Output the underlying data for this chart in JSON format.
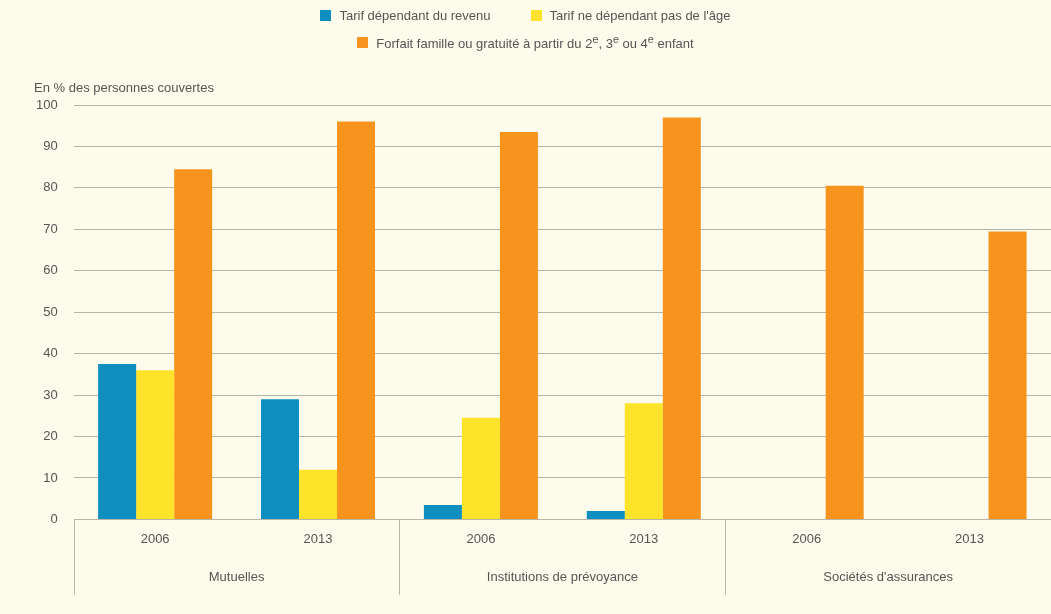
{
  "chart_data": {
    "type": "bar",
    "ylabel": "En % des personnes couvertes",
    "categories": [
      "2006",
      "2013",
      "2006",
      "2013",
      "2006",
      "2013"
    ],
    "annotations": [
      "Mutuelles",
      "Institutions de prévoyance",
      "Sociétés d'assurances"
    ],
    "series": [
      {
        "name": "Tarif dépendant du revenu",
        "color": "#0f8fbf",
        "values": [
          37.5,
          29,
          3.5,
          2,
          null,
          null
        ]
      },
      {
        "name": "Tarif ne dépendant pas de l'âge",
        "color": "#fde42a",
        "values": [
          36,
          12,
          24.5,
          28,
          null,
          null
        ]
      },
      {
        "name": "Forfait famille ou gratuité à partir du 2$^{e}$, 3$^{e}$ ou 4$^{e}$ enfant",
        "color": "#f7941d",
        "values": [
          84.5,
          96,
          93.5,
          97,
          80.5,
          69.5
        ]
      }
    ],
    "ylim": [
      0,
      100
    ],
    "yticks": [
      0,
      10,
      20,
      30,
      40,
      50,
      60,
      70,
      80,
      90,
      100
    ],
    "grid": "y",
    "legend": "top"
  }
}
